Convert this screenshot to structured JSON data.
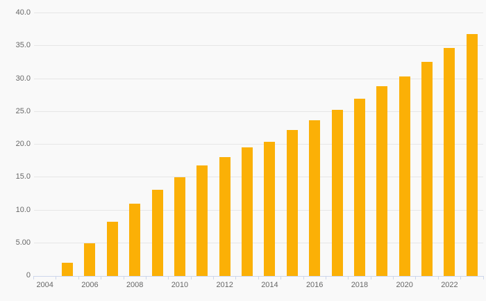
{
  "chart_data": {
    "type": "bar",
    "title": "",
    "xlabel": "",
    "ylabel": "",
    "categories": [
      2004,
      2005,
      2006,
      2007,
      2008,
      2009,
      2010,
      2011,
      2012,
      2013,
      2014,
      2015,
      2016,
      2017,
      2018,
      2019,
      2020,
      2021,
      2022,
      2023
    ],
    "values": [
      0,
      2.0,
      4.9,
      8.2,
      11.0,
      13.1,
      15.0,
      16.8,
      18.0,
      19.5,
      20.4,
      22.2,
      23.6,
      25.2,
      26.9,
      28.8,
      30.3,
      32.5,
      34.7,
      36.8
    ],
    "ylim": [
      0,
      40
    ],
    "y_tick_step": 5,
    "y_tick_labels": [
      "0",
      "5.00",
      "10.0",
      "15.0",
      "20.0",
      "25.0",
      "30.0",
      "35.0",
      "40.0"
    ],
    "x_tick_labels": [
      "2004",
      "2006",
      "2008",
      "2010",
      "2012",
      "2014",
      "2016",
      "2018",
      "2020",
      "2022"
    ],
    "grid": true,
    "legend_position": "none",
    "bar_color": "#fbb006"
  },
  "colors": {
    "background": "#f9f9f9",
    "gridline": "#e6e6e6",
    "axis_line": "#ccd6eb",
    "label_text": "#666666",
    "bar": "#fbb006"
  }
}
